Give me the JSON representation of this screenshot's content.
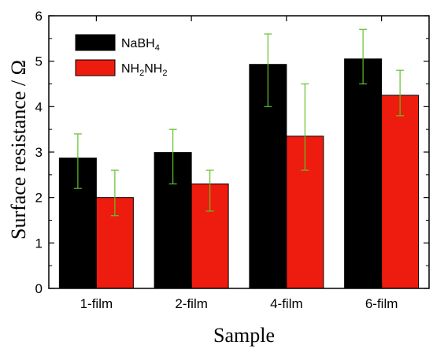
{
  "chart_data": {
    "type": "bar",
    "title": "",
    "xlabel": "Sample",
    "ylabel": "Surface resistance / Ω",
    "categories": [
      "1-film",
      "2-film",
      "4-film",
      "6-film"
    ],
    "ylim": [
      0,
      6
    ],
    "yticks": [
      0,
      1,
      2,
      3,
      4,
      5,
      6
    ],
    "legend_position": "top-left",
    "series": [
      {
        "name": "NaBH4",
        "legend_main": "NaBH",
        "legend_sub": "4",
        "color": "#000000",
        "values": [
          2.87,
          2.99,
          4.93,
          5.05
        ],
        "err_low": [
          2.2,
          2.3,
          4.0,
          4.5
        ],
        "err_high": [
          3.4,
          3.5,
          5.6,
          5.7
        ]
      },
      {
        "name": "NH2NH2",
        "legend_parts": [
          "NH",
          "2",
          "NH",
          "2"
        ],
        "color": "#ee1c0e",
        "values": [
          2.0,
          2.3,
          3.35,
          4.25
        ],
        "err_low": [
          1.6,
          1.7,
          2.6,
          3.8
        ],
        "err_high": [
          2.6,
          2.6,
          4.5,
          4.8
        ]
      }
    ],
    "error_bar_color": "#5fc22a"
  }
}
